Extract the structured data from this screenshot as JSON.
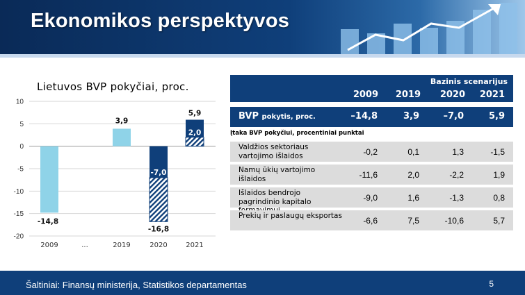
{
  "slide_title": "Ekonomikos perspektyvos",
  "footer": {
    "source": "Šaltiniai: Finansų ministerija, Statistikos departamentas",
    "page": "5"
  },
  "chart_data": {
    "type": "bar",
    "title": "Lietuvos BVP pokyčiai, proc.",
    "categories": [
      "2009",
      "...",
      "2019",
      "2020",
      "2021"
    ],
    "ylim": [
      -20,
      10
    ],
    "yticks": [
      10,
      5,
      0,
      -5,
      -10,
      -15,
      -20
    ],
    "grid": true,
    "colors": {
      "actual": "#8fd3e8",
      "forecast": "#0f3f7a",
      "hatch": "#0f3f7a"
    },
    "bars": [
      {
        "category": "2009",
        "value": -14.8,
        "label": "-14,8",
        "kind": "actual"
      },
      {
        "category": "2019",
        "value": 3.9,
        "label": "3,9",
        "kind": "actual"
      },
      {
        "category": "2020",
        "value": -7.0,
        "label": "-7,0",
        "total": -16.8,
        "total_label": "-16,8",
        "kind": "forecast"
      },
      {
        "category": "2021",
        "value": 5.9,
        "label": "5,9",
        "inner": 2.0,
        "inner_label": "2,0",
        "kind": "forecast"
      }
    ]
  },
  "table": {
    "scenario": "Bazinis scenarijus",
    "years": [
      "2009",
      "2019",
      "2020",
      "2021"
    ],
    "gdp": {
      "label": "BVP",
      "label_small": "pokytis, proc.",
      "values": [
        "–14,8",
        "3,9",
        "–7,0",
        "5,9"
      ]
    },
    "subheader": "Įtaka BVP pokyčiui, procentiniai punktai",
    "rows": [
      {
        "label": "Valdžios sektoriaus vartojimo išlaidos",
        "values": [
          "-0,2",
          "0,1",
          "1,3",
          "-1,5"
        ]
      },
      {
        "label": "Namų ūkių vartojimo išlaidos",
        "values": [
          "-11,6",
          "2,0",
          "-2,2",
          "1,9"
        ]
      },
      {
        "label": "Išlaidos bendrojo pagrindinio kapitalo formavimui",
        "values": [
          "-9,0",
          "1,6",
          "-1,3",
          "0,8"
        ]
      },
      {
        "label": "Prekių ir paslaugų eksportas",
        "values": [
          "-6,6",
          "7,5",
          "-10,6",
          "5,7"
        ]
      }
    ]
  }
}
